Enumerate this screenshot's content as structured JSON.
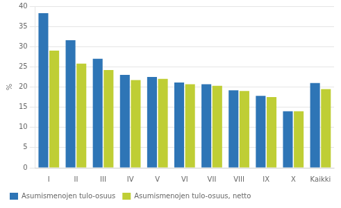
{
  "chart_data": {
    "type": "bar",
    "ylabel": "%",
    "categories": [
      "I",
      "II",
      "III",
      "IV",
      "V",
      "VI",
      "VII",
      "VIII",
      "IX",
      "X",
      "Kaikki"
    ],
    "series": [
      {
        "name": "Asumismenojen tulo-osuus",
        "color": "#2E75B6",
        "values": [
          38.3,
          31.6,
          27.0,
          23.0,
          22.5,
          21.1,
          20.7,
          19.2,
          17.8,
          14.0,
          21.0
        ]
      },
      {
        "name": "Asumismenojen tulo-osuus, netto",
        "color": "#BFCE35",
        "values": [
          29.0,
          25.8,
          24.2,
          21.7,
          22.0,
          20.7,
          20.3,
          19.0,
          17.5,
          14.0,
          19.5
        ]
      }
    ],
    "ylim": [
      0,
      40
    ],
    "yticks": [
      0,
      5,
      10,
      15,
      20,
      25,
      30,
      35,
      40
    ],
    "grid": true,
    "legend": "bottom"
  }
}
